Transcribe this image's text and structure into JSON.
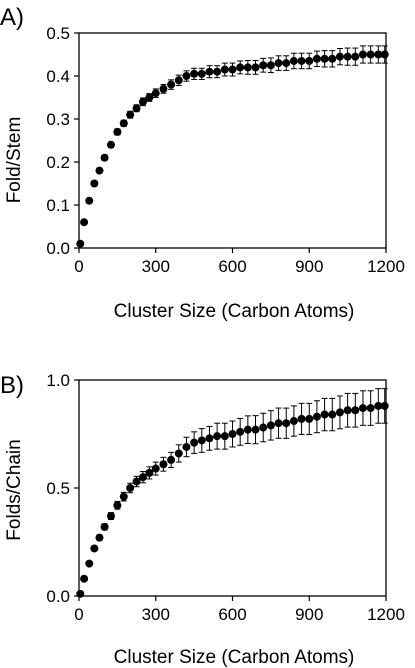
{
  "chart_data": [
    {
      "panel": "A)",
      "type": "scatter",
      "xlabel": "Cluster Size (Carbon Atoms)",
      "ylabel": "Fold/Stem",
      "xlim": [
        0,
        1200
      ],
      "ylim": [
        0,
        0.5
      ],
      "xticks": [
        0,
        300,
        600,
        900,
        1200
      ],
      "yticks": [
        0.0,
        0.1,
        0.2,
        0.3,
        0.4,
        0.5
      ],
      "ytick_labels": [
        "0.0",
        "0.1",
        "0.2",
        "0.3",
        "0.4",
        "0.5"
      ],
      "grid": false,
      "error_bars": true,
      "series": [
        {
          "color": "#000000",
          "x": [
            5,
            20,
            40,
            60,
            80,
            100,
            125,
            150,
            175,
            200,
            225,
            250,
            275,
            300,
            330,
            360,
            390,
            420,
            450,
            480,
            510,
            540,
            570,
            600,
            630,
            660,
            690,
            720,
            750,
            780,
            810,
            840,
            870,
            900,
            930,
            960,
            990,
            1020,
            1050,
            1080,
            1110,
            1140,
            1170,
            1195
          ],
          "y": [
            0.01,
            0.06,
            0.11,
            0.15,
            0.18,
            0.21,
            0.24,
            0.27,
            0.29,
            0.31,
            0.325,
            0.34,
            0.35,
            0.36,
            0.37,
            0.38,
            0.39,
            0.4,
            0.405,
            0.405,
            0.41,
            0.41,
            0.415,
            0.415,
            0.42,
            0.42,
            0.42,
            0.425,
            0.425,
            0.43,
            0.43,
            0.435,
            0.435,
            0.435,
            0.44,
            0.44,
            0.44,
            0.445,
            0.445,
            0.445,
            0.45,
            0.45,
            0.45,
            0.45
          ],
          "err": [
            0.002,
            0.003,
            0.004,
            0.005,
            0.005,
            0.006,
            0.006,
            0.007,
            0.007,
            0.008,
            0.008,
            0.009,
            0.009,
            0.01,
            0.01,
            0.011,
            0.012,
            0.012,
            0.013,
            0.013,
            0.014,
            0.014,
            0.015,
            0.015,
            0.015,
            0.016,
            0.016,
            0.016,
            0.017,
            0.017,
            0.017,
            0.018,
            0.018,
            0.018,
            0.018,
            0.019,
            0.019,
            0.019,
            0.02,
            0.02,
            0.02,
            0.02,
            0.02,
            0.02
          ]
        }
      ]
    },
    {
      "panel": "B)",
      "type": "scatter",
      "xlabel": "Cluster Size (Carbon Atoms)",
      "ylabel": "Folds/Chain",
      "xlim": [
        0,
        1200
      ],
      "ylim": [
        0,
        1.0
      ],
      "xticks": [
        0,
        300,
        600,
        900,
        1200
      ],
      "yticks": [
        0.0,
        0.5,
        1.0
      ],
      "ytick_labels": [
        "0.0",
        "0.5",
        "1.0"
      ],
      "grid": false,
      "error_bars": true,
      "series": [
        {
          "color": "#000000",
          "x": [
            5,
            20,
            40,
            60,
            80,
            100,
            125,
            150,
            175,
            200,
            225,
            250,
            275,
            300,
            330,
            360,
            390,
            420,
            450,
            480,
            510,
            540,
            570,
            600,
            630,
            660,
            690,
            720,
            750,
            780,
            810,
            840,
            870,
            900,
            930,
            960,
            990,
            1020,
            1050,
            1080,
            1110,
            1140,
            1170,
            1195
          ],
          "y": [
            0.01,
            0.08,
            0.15,
            0.22,
            0.27,
            0.32,
            0.37,
            0.42,
            0.46,
            0.5,
            0.53,
            0.55,
            0.57,
            0.59,
            0.61,
            0.63,
            0.66,
            0.69,
            0.71,
            0.72,
            0.73,
            0.74,
            0.74,
            0.75,
            0.76,
            0.77,
            0.77,
            0.78,
            0.79,
            0.8,
            0.8,
            0.81,
            0.82,
            0.82,
            0.83,
            0.84,
            0.84,
            0.85,
            0.86,
            0.86,
            0.87,
            0.87,
            0.88,
            0.88
          ],
          "err": [
            0.004,
            0.006,
            0.008,
            0.01,
            0.012,
            0.014,
            0.016,
            0.018,
            0.02,
            0.022,
            0.024,
            0.026,
            0.028,
            0.03,
            0.032,
            0.035,
            0.04,
            0.045,
            0.05,
            0.055,
            0.055,
            0.06,
            0.06,
            0.06,
            0.062,
            0.064,
            0.065,
            0.066,
            0.068,
            0.07,
            0.07,
            0.07,
            0.072,
            0.072,
            0.074,
            0.075,
            0.075,
            0.076,
            0.078,
            0.078,
            0.08,
            0.08,
            0.08,
            0.08
          ]
        }
      ]
    }
  ]
}
